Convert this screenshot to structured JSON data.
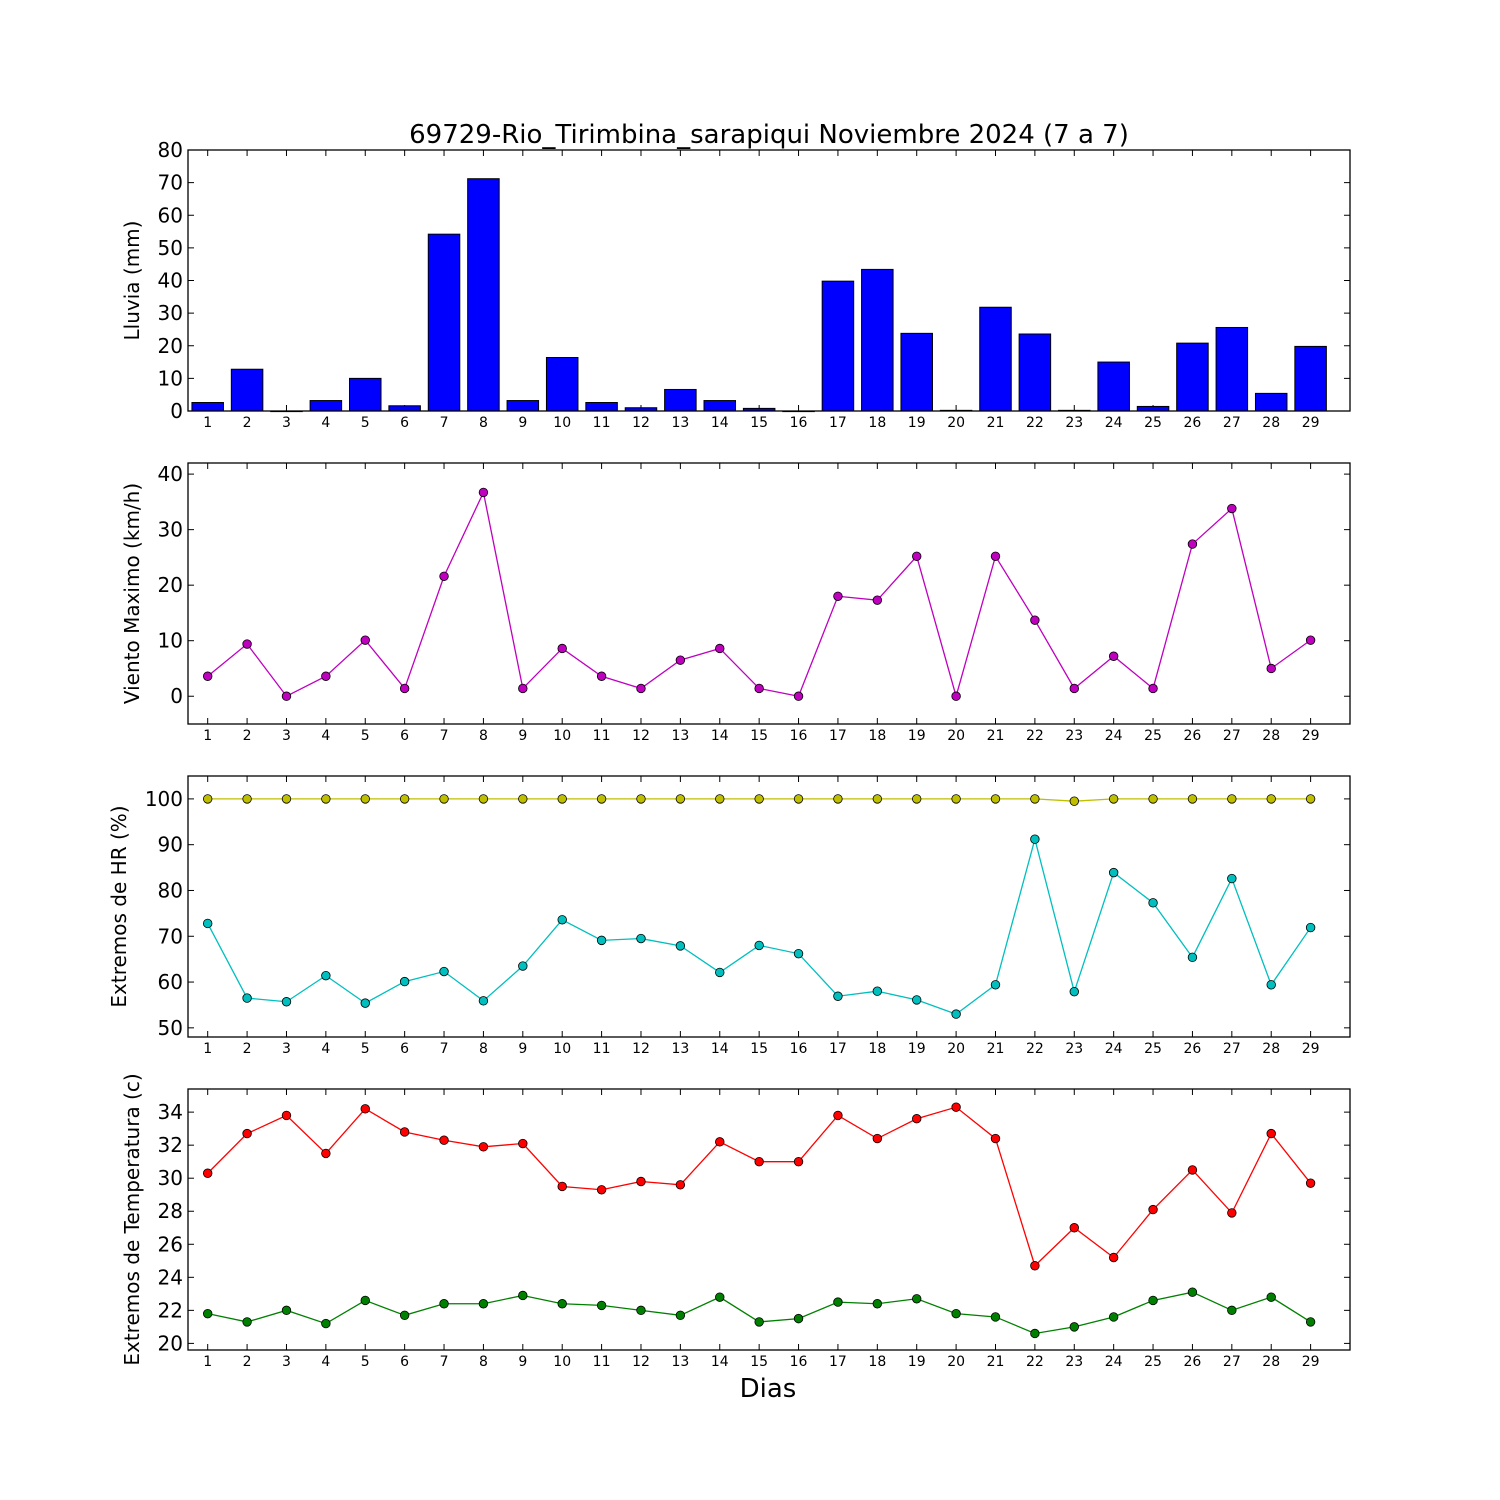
{
  "figure": {
    "title": "69729-Rio_Tirimbina_sarapiqui Noviembre 2024  (7 a 7)",
    "xlabel": "Dias"
  },
  "chart_data": [
    {
      "type": "bar",
      "ylabel": "Lluvia (mm)",
      "ylim": [
        0,
        80
      ],
      "yticks": [
        0,
        10,
        20,
        30,
        40,
        50,
        60,
        70,
        80
      ],
      "categories": [
        "1",
        "2",
        "3",
        "4",
        "5",
        "6",
        "7",
        "8",
        "9",
        "10",
        "11",
        "12",
        "13",
        "14",
        "15",
        "16",
        "17",
        "18",
        "19",
        "20",
        "21",
        "22",
        "23",
        "24",
        "25",
        "26",
        "27",
        "28",
        "29"
      ],
      "series": [
        {
          "color": "#0000ff",
          "values": [
            2.6,
            12.8,
            0,
            3.2,
            10.0,
            1.6,
            54.2,
            71.2,
            3.2,
            16.4,
            2.6,
            1.0,
            6.6,
            3.2,
            0.8,
            0,
            39.8,
            43.4,
            23.8,
            0.2,
            31.8,
            23.6,
            0.2,
            15.0,
            1.4,
            20.8,
            25.6,
            5.4,
            19.8
          ]
        }
      ]
    },
    {
      "type": "line",
      "ylabel": "Viento Maximo (km/h)",
      "ylim": [
        -5,
        42
      ],
      "yticks": [
        0,
        10,
        20,
        30,
        40
      ],
      "categories": [
        "1",
        "2",
        "3",
        "4",
        "5",
        "6",
        "7",
        "8",
        "9",
        "10",
        "11",
        "12",
        "13",
        "14",
        "15",
        "16",
        "17",
        "18",
        "19",
        "20",
        "21",
        "22",
        "23",
        "24",
        "25",
        "26",
        "27",
        "28",
        "29"
      ],
      "series": [
        {
          "color": "#bf00bf",
          "values": [
            3.6,
            9.4,
            0,
            3.6,
            10.1,
            1.4,
            21.6,
            36.7,
            1.4,
            8.6,
            3.6,
            1.4,
            6.5,
            8.6,
            1.4,
            0,
            18.0,
            17.3,
            25.2,
            0,
            25.2,
            13.7,
            1.4,
            7.2,
            1.4,
            27.4,
            33.8,
            5.0,
            10.1
          ]
        }
      ]
    },
    {
      "type": "line",
      "ylabel": "Extremos de HR (%)",
      "ylim": [
        48,
        105
      ],
      "yticks": [
        50,
        60,
        70,
        80,
        90,
        100
      ],
      "categories": [
        "1",
        "2",
        "3",
        "4",
        "5",
        "6",
        "7",
        "8",
        "9",
        "10",
        "11",
        "12",
        "13",
        "14",
        "15",
        "16",
        "17",
        "18",
        "19",
        "20",
        "21",
        "22",
        "23",
        "24",
        "25",
        "26",
        "27",
        "28",
        "29"
      ],
      "series": [
        {
          "color": "#bfbf00",
          "values": [
            100,
            100,
            100,
            100,
            100,
            100,
            100,
            100,
            100,
            100,
            100,
            100,
            100,
            100,
            100,
            100,
            100,
            100,
            100,
            100,
            100,
            100,
            99.5,
            100,
            100,
            100,
            100,
            100,
            100
          ]
        },
        {
          "color": "#00bfbf",
          "values": [
            72.8,
            56.5,
            55.7,
            61.4,
            55.4,
            60.1,
            62.3,
            55.9,
            63.5,
            73.6,
            69.1,
            69.5,
            67.9,
            62.1,
            68.0,
            66.2,
            56.9,
            58.0,
            56.1,
            53.0,
            59.4,
            91.2,
            57.9,
            83.9,
            77.3,
            65.4,
            82.6,
            59.4,
            71.9
          ]
        }
      ]
    },
    {
      "type": "line",
      "ylabel": "Extremos de Temperatura (c)",
      "ylim": [
        19.6,
        35.4
      ],
      "yticks": [
        20,
        22,
        24,
        26,
        28,
        30,
        32,
        34
      ],
      "categories": [
        "1",
        "2",
        "3",
        "4",
        "5",
        "6",
        "7",
        "8",
        "9",
        "10",
        "11",
        "12",
        "13",
        "14",
        "15",
        "16",
        "17",
        "18",
        "19",
        "20",
        "21",
        "22",
        "23",
        "24",
        "25",
        "26",
        "27",
        "28",
        "29"
      ],
      "series": [
        {
          "color": "#ff0000",
          "values": [
            30.3,
            32.7,
            33.8,
            31.5,
            34.2,
            32.8,
            32.3,
            31.9,
            32.1,
            29.5,
            29.3,
            29.8,
            29.6,
            32.2,
            31.0,
            31.0,
            33.8,
            32.4,
            33.6,
            34.3,
            32.4,
            24.7,
            27.0,
            25.2,
            28.1,
            30.5,
            27.9,
            32.7,
            29.7
          ]
        },
        {
          "color": "#008000",
          "values": [
            21.8,
            21.3,
            22.0,
            21.2,
            22.6,
            21.7,
            22.4,
            22.4,
            22.9,
            22.4,
            22.3,
            22.0,
            21.7,
            22.8,
            21.3,
            21.5,
            22.5,
            22.4,
            22.7,
            21.8,
            21.6,
            20.6,
            21.0,
            21.6,
            22.6,
            23.1,
            22.0,
            22.8,
            21.3
          ]
        }
      ]
    }
  ]
}
